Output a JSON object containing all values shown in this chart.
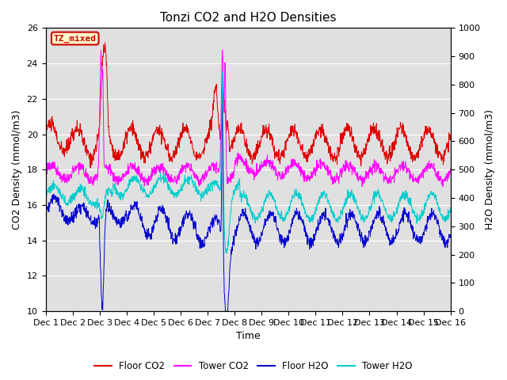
{
  "title": "Tonzi CO2 and H2O Densities",
  "xlabel": "Time",
  "ylabel_left": "CO2 Density (mmol/m3)",
  "ylabel_right": "H2O Density (mmol/m3)",
  "ylim_left": [
    10,
    26
  ],
  "ylim_right": [
    0,
    1000
  ],
  "yticks_left": [
    10,
    12,
    14,
    16,
    18,
    20,
    22,
    24,
    26
  ],
  "yticks_right": [
    0,
    100,
    200,
    300,
    400,
    500,
    600,
    700,
    800,
    900,
    1000
  ],
  "xtick_labels": [
    "Dec 1",
    "Dec 2",
    "Dec 3",
    "Dec 4",
    "Dec 5",
    "Dec 6",
    "Dec 7",
    "Dec 8",
    "Dec 9",
    "Dec 10",
    "Dec 11",
    "Dec 12",
    "Dec 13",
    "Dec 14",
    "Dec 15",
    "Dec 16"
  ],
  "annotation_text": "TZ_mixed",
  "annotation_color": "#cc0000",
  "annotation_bg": "#ffffcc",
  "colors": {
    "floor_co2": "#dd0000",
    "tower_co2": "#ff00ff",
    "floor_h2o": "#0000cc",
    "tower_h2o": "#00cccc"
  },
  "legend_labels": [
    "Floor CO2",
    "Tower CO2",
    "Floor H2O",
    "Tower H2O"
  ],
  "bg_color": "#e0e0e0",
  "title_fontsize": 11,
  "label_fontsize": 9,
  "tick_fontsize": 8
}
